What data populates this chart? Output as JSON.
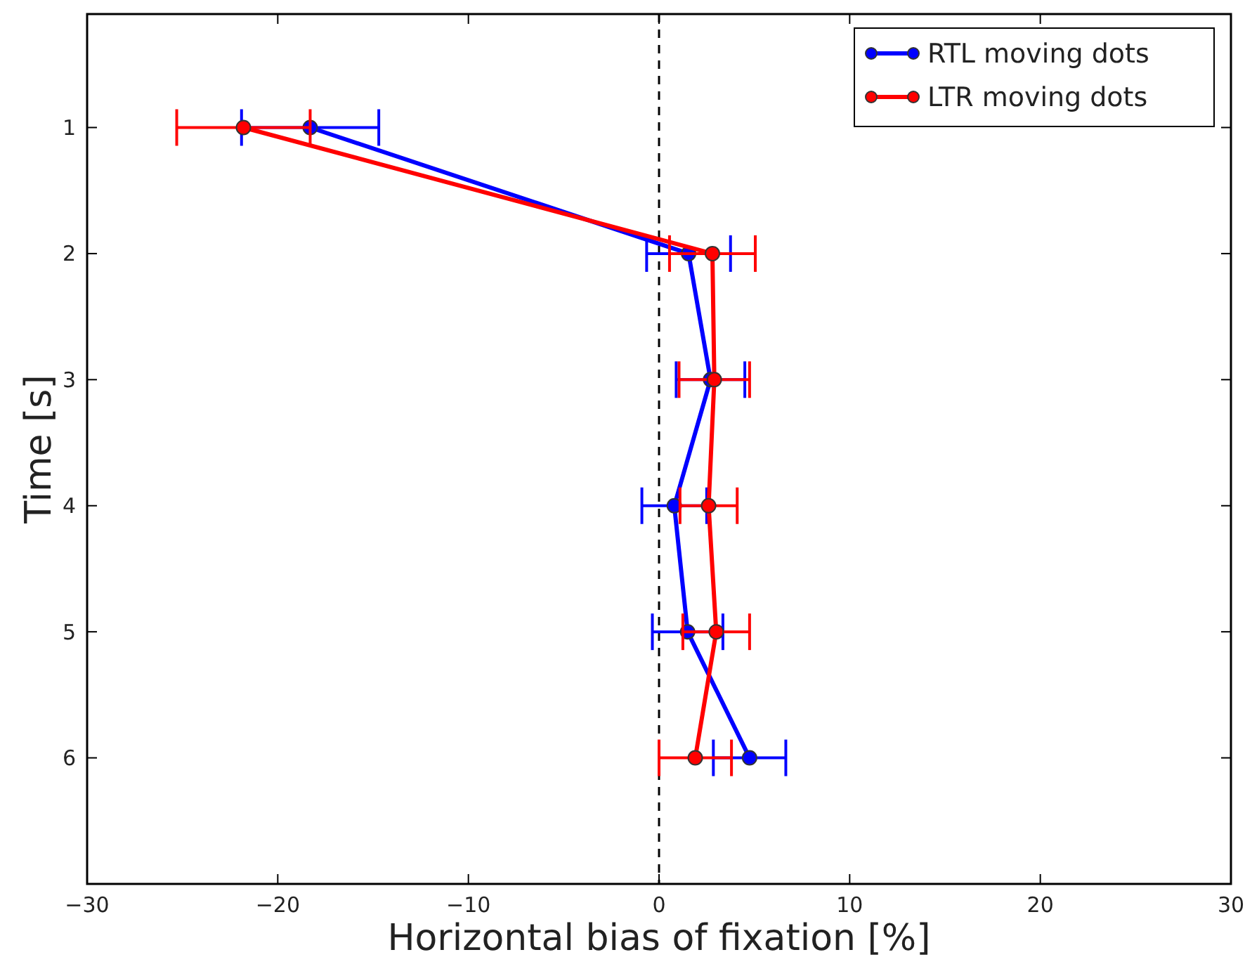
{
  "chart_data": {
    "type": "line",
    "xlabel": "Horizontal bias of fixation [%]",
    "ylabel": "Time [s]",
    "xlim": [
      -30,
      30
    ],
    "xticks": [
      {
        "value": -30,
        "label": "−30"
      },
      {
        "value": -20,
        "label": "−20"
      },
      {
        "value": -10,
        "label": "−10"
      },
      0,
      10,
      20,
      30
    ],
    "ylim": [
      7,
      0.1
    ],
    "yticks": [
      1,
      2,
      3,
      4,
      5,
      6
    ],
    "series": [
      {
        "name": "RTL moving dots",
        "color": "#0000ff",
        "x": [
          -18.3,
          1.55,
          2.7,
          0.8,
          1.5,
          4.75
        ],
        "values": [
          1,
          2,
          3,
          4,
          5,
          6
        ],
        "xerrors": [
          3.6,
          2.2,
          1.8,
          1.7,
          1.85,
          1.9
        ]
      },
      {
        "name": "LTR moving dots",
        "color": "#ff0000",
        "x": [
          -21.8,
          2.8,
          2.9,
          2.6,
          3.0,
          1.9
        ],
        "values": [
          1,
          2,
          3,
          4,
          5,
          6
        ],
        "xerrors": [
          3.5,
          2.25,
          1.85,
          1.5,
          1.75,
          1.9
        ]
      }
    ],
    "ref_lines": [
      {
        "axis": "x",
        "value": 0,
        "color": "#000000",
        "line_style": "dashed"
      }
    ],
    "legend": "top right",
    "marker": "circle",
    "line_style": "solid",
    "grid": false
  }
}
